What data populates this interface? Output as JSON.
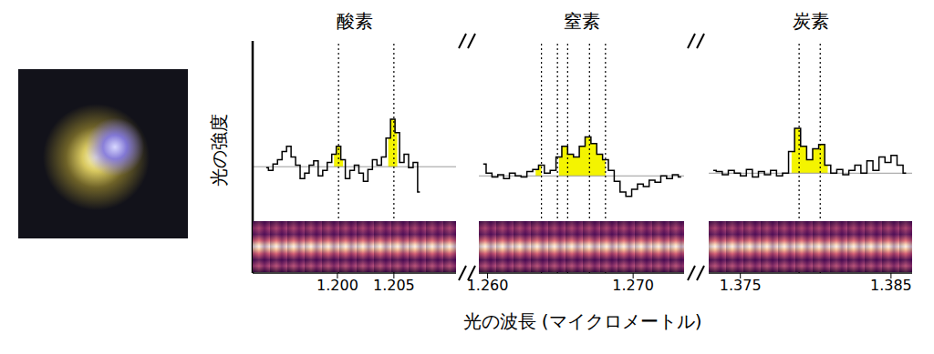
{
  "chart_data": [
    {
      "type": "line",
      "title": "酸素",
      "ylabel": "光の強度",
      "color": "#000000",
      "line_style": "steps",
      "tick_labels": "x",
      "xlim": [
        1.1925,
        1.2105
      ],
      "xticks": [
        {
          "value": 1.2,
          "label": "1.200"
        },
        {
          "value": 1.205,
          "label": "1.205"
        }
      ],
      "ylim": [
        0.7,
        5
      ],
      "yticks": [
        1,
        2,
        3,
        4
      ],
      "continuum": 2.67,
      "lines": [
        1.2001,
        1.205
      ],
      "highlights": [
        [
          1.1995,
          1.2005
        ],
        [
          1.2043,
          1.2055
        ]
      ],
      "x": [
        1.1937,
        1.1941,
        1.1945,
        1.1949,
        1.1953,
        1.1957,
        1.1961,
        1.1965,
        1.1969,
        1.1973,
        1.1977,
        1.1981,
        1.1985,
        1.1989,
        1.1993,
        1.1997,
        1.2001,
        1.2005,
        1.2009,
        1.2013,
        1.2017,
        1.2021,
        1.2025,
        1.2029,
        1.2033,
        1.2037,
        1.2041,
        1.2045,
        1.2049,
        1.2053,
        1.2057,
        1.2061,
        1.2065,
        1.2069,
        1.2073
      ],
      "values": [
        2.65,
        2.6,
        2.72,
        2.8,
        2.95,
        3.05,
        2.85,
        2.7,
        2.45,
        2.55,
        2.7,
        2.78,
        2.5,
        2.6,
        2.75,
        2.9,
        3.05,
        2.8,
        2.45,
        2.6,
        2.7,
        2.55,
        2.4,
        2.62,
        2.8,
        2.7,
        2.85,
        3.2,
        3.55,
        3.3,
        2.75,
        2.9,
        2.65,
        2.75,
        2.2
      ]
    },
    {
      "type": "line",
      "title": "窒素",
      "xlabel": "光の波長 (マイクロメートル)",
      "color": "#000000",
      "line_style": "steps",
      "tick_labels": "x",
      "xlim": [
        1.2594,
        1.2735
      ],
      "xticks": [
        {
          "value": 1.26,
          "label": "1.260"
        },
        {
          "value": 1.27,
          "label": "1.270"
        }
      ],
      "ylim": [
        0.7,
        5
      ],
      "continuum": 2.5,
      "lines": [
        1.2637,
        1.2648,
        1.2655,
        1.267,
        1.2681
      ],
      "highlights": [
        [
          1.2633,
          1.264
        ],
        [
          1.2647,
          1.2684
        ]
      ],
      "x": [
        1.2597,
        1.2601,
        1.2605,
        1.2609,
        1.2613,
        1.2617,
        1.2621,
        1.2625,
        1.2629,
        1.2633,
        1.2637,
        1.2641,
        1.2645,
        1.2649,
        1.2653,
        1.2657,
        1.2661,
        1.2665,
        1.2669,
        1.2673,
        1.2677,
        1.2681,
        1.2685,
        1.2689,
        1.2693,
        1.2697,
        1.2701,
        1.2705,
        1.2709,
        1.2713,
        1.2717,
        1.2721,
        1.2725,
        1.2729,
        1.2733
      ],
      "values": [
        2.72,
        2.55,
        2.48,
        2.52,
        2.45,
        2.55,
        2.5,
        2.48,
        2.58,
        2.62,
        2.7,
        2.55,
        2.6,
        2.85,
        3.05,
        2.9,
        2.85,
        3.05,
        3.22,
        3.1,
        2.9,
        2.8,
        2.6,
        2.4,
        2.2,
        2.12,
        2.25,
        2.35,
        2.3,
        2.42,
        2.38,
        2.5,
        2.45,
        2.52,
        2.48
      ]
    },
    {
      "type": "line",
      "title": "炭素",
      "color": "#000000",
      "line_style": "steps",
      "tick_labels": "x",
      "xlim": [
        1.3729,
        1.3864
      ],
      "xticks": [
        {
          "value": 1.375,
          "label": "1.375"
        },
        {
          "value": 1.385,
          "label": "1.385"
        }
      ],
      "ylim": [
        0.7,
        5
      ],
      "continuum": 2.55,
      "lines": [
        1.3789,
        1.3803
      ],
      "highlights": [
        [
          1.3782,
          1.381
        ]
      ],
      "x": [
        1.3732,
        1.3736,
        1.374,
        1.3744,
        1.3748,
        1.3752,
        1.3756,
        1.376,
        1.3764,
        1.3768,
        1.3772,
        1.3776,
        1.378,
        1.3784,
        1.3788,
        1.3792,
        1.3796,
        1.38,
        1.3804,
        1.3808,
        1.3812,
        1.3816,
        1.382,
        1.3824,
        1.3828,
        1.3832,
        1.3836,
        1.384,
        1.3844,
        1.3848,
        1.3852,
        1.3856,
        1.386
      ],
      "values": [
        2.6,
        2.58,
        2.52,
        2.6,
        2.55,
        2.5,
        2.62,
        2.48,
        2.58,
        2.52,
        2.6,
        2.5,
        2.55,
        2.95,
        3.38,
        3.05,
        2.8,
        3.0,
        3.08,
        2.7,
        2.55,
        2.62,
        2.52,
        2.6,
        2.7,
        2.55,
        2.78,
        2.6,
        2.85,
        2.75,
        2.88,
        2.7,
        2.55
      ]
    }
  ]
}
